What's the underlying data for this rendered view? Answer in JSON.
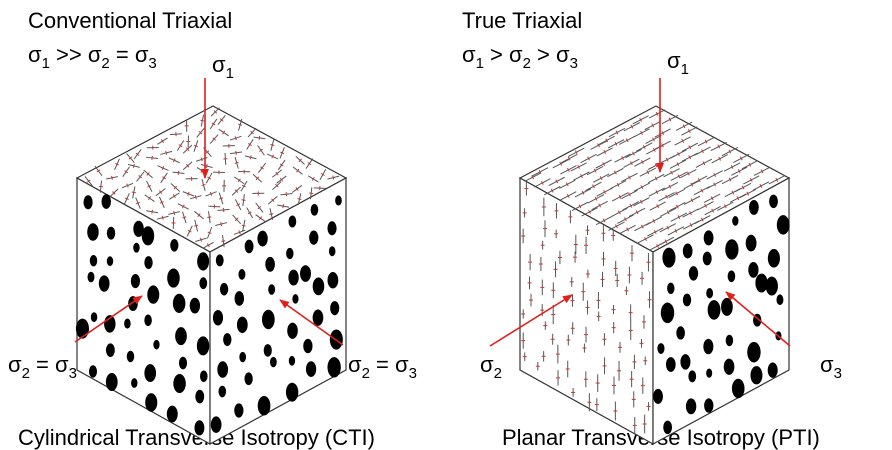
{
  "left": {
    "title": "Conventional Triaxial",
    "condition": [
      "σ",
      "1",
      " >> σ",
      "2",
      " = σ",
      "3"
    ],
    "axial_label": [
      "σ",
      "1"
    ],
    "lateral_left_label": [
      "σ",
      "2",
      " = σ",
      "3"
    ],
    "lateral_right_label": [
      "σ",
      "2",
      " = σ",
      "3"
    ],
    "caption": "Cylindrical Transverse Isotropy (CTI)"
  },
  "right": {
    "title": "True Triaxial",
    "condition": [
      "σ",
      "1",
      " > σ",
      "2",
      " > σ",
      "3"
    ],
    "axial_label": [
      "σ",
      "1"
    ],
    "lateral_left_label": [
      "σ",
      "2"
    ],
    "lateral_right_label": [
      "σ",
      "3"
    ],
    "caption": "Planar Transverse Isotropy (PTI)"
  }
}
